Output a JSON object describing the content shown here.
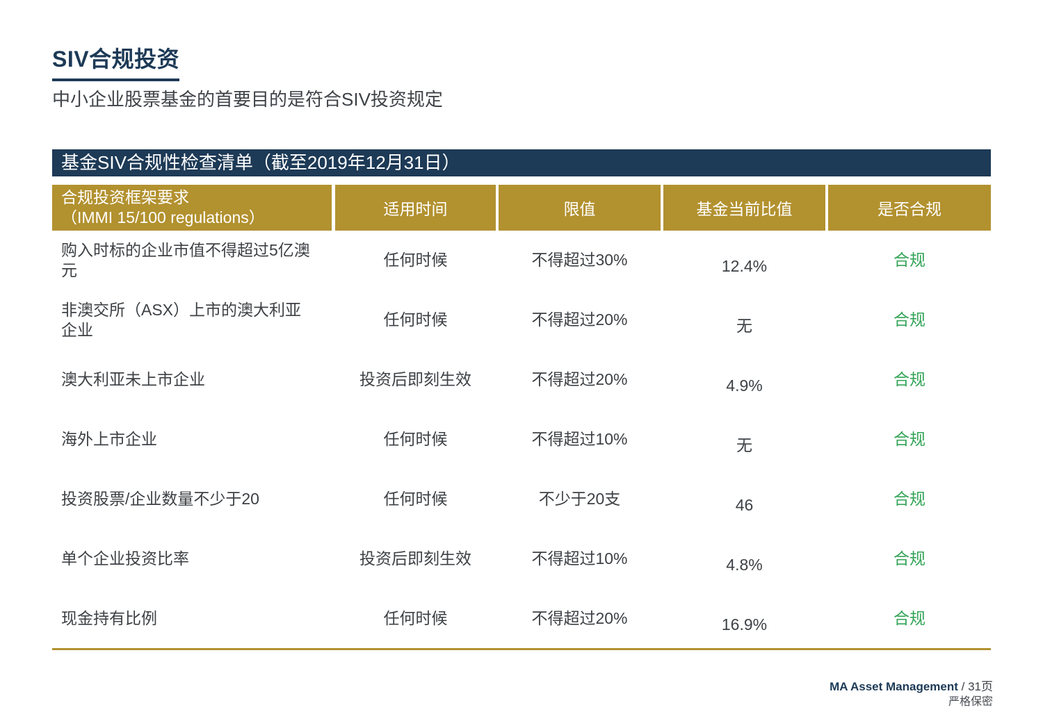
{
  "page": {
    "title": "SIV合规投资",
    "subtitle": "中小企业股票基金的首要目的是符合SIV投资规定"
  },
  "table": {
    "banner": "基金SIV合规性检查清单（截至2019年12月31日）",
    "header": {
      "requirement_line1": "合规投资框架要求",
      "requirement_line2": "（IMMI 15/100 regulations）",
      "applicable_time": "适用时间",
      "limit": "限值",
      "current_ratio": "基金当前比值",
      "compliant": "是否合规"
    },
    "rows": [
      {
        "requirement": "购入时标的企业市值不得超过5亿澳元",
        "time": "任何时候",
        "limit": "不得超过30%",
        "current": "12.4%",
        "status": "合规"
      },
      {
        "requirement": "非澳交所（ASX）上市的澳大利亚企业",
        "time": "任何时候",
        "limit": "不得超过20%",
        "current": "无",
        "status": "合规"
      },
      {
        "requirement": "澳大利亚未上市企业",
        "time": "投资后即刻生效",
        "limit": "不得超过20%",
        "current": "4.9%",
        "status": "合规"
      },
      {
        "requirement": "海外上市企业",
        "time": "任何时候",
        "limit": "不得超过10%",
        "current": "无",
        "status": "合规"
      },
      {
        "requirement": "投资股票/企业数量不少于20",
        "time": "任何时候",
        "limit": "不少于20支",
        "current": "46",
        "status": "合规"
      },
      {
        "requirement": "单个企业投资比率",
        "time": "投资后即刻生效",
        "limit": "不得超过10%",
        "current": "4.8%",
        "status": "合规"
      },
      {
        "requirement": "现金持有比例",
        "time": "任何时候",
        "limit": "不得超过20%",
        "current": "16.9%",
        "status": "合规"
      }
    ]
  },
  "footer": {
    "company": "MA Asset Management",
    "page_suffix": " / 31页",
    "confidential": "严格保密"
  },
  "colors": {
    "navy": "#1d3a56",
    "gold": "#b2912f",
    "green": "#33a457",
    "body_text": "#3d4145"
  }
}
